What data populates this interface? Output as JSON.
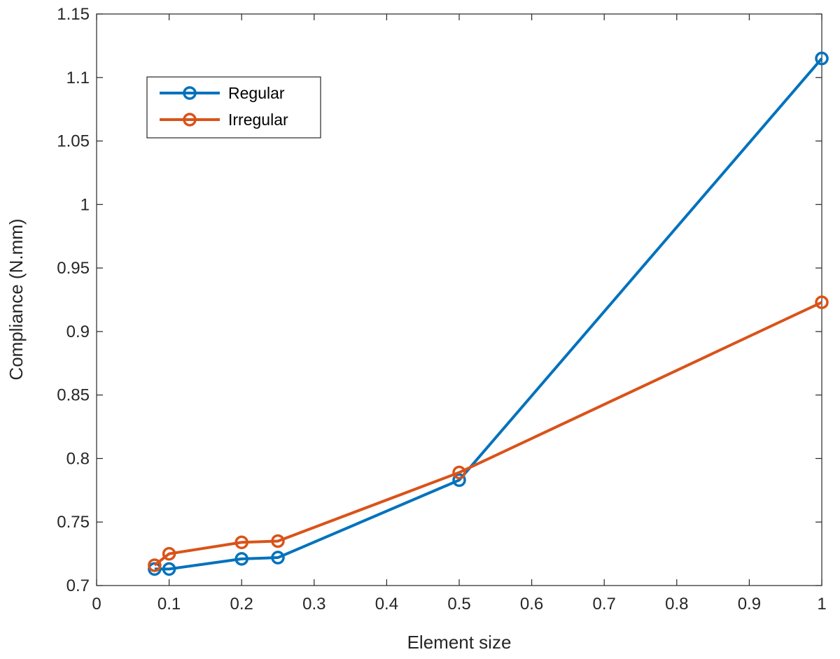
{
  "chart_data": {
    "type": "line",
    "title": "",
    "xlabel": "Element size",
    "ylabel": "Compliance (N.mm)",
    "xlim": [
      0,
      1
    ],
    "ylim": [
      0.7,
      1.15
    ],
    "xticks": [
      0,
      0.1,
      0.2,
      0.3,
      0.4,
      0.5,
      0.6,
      0.7,
      0.8,
      0.9,
      1
    ],
    "xtick_labels": [
      "0",
      "0.1",
      "0.2",
      "0.3",
      "0.4",
      "0.5",
      "0.6",
      "0.7",
      "0.8",
      "0.9",
      "1"
    ],
    "yticks": [
      0.7,
      0.75,
      0.8,
      0.85,
      0.9,
      0.95,
      1,
      1.05,
      1.1,
      1.15
    ],
    "ytick_labels": [
      "0.7",
      "0.75",
      "0.8",
      "0.85",
      "0.9",
      "0.95",
      "1",
      "1.05",
      "1.1",
      "1.15"
    ],
    "grid": false,
    "legend_position": "top-left",
    "series": [
      {
        "name": "Regular",
        "color": "#0072BD",
        "marker": "circle",
        "x": [
          0.08,
          0.1,
          0.2,
          0.25,
          0.5,
          1
        ],
        "y": [
          0.713,
          0.713,
          0.721,
          0.722,
          0.783,
          1.115
        ]
      },
      {
        "name": "Irregular",
        "color": "#D95319",
        "marker": "circle",
        "x": [
          0.08,
          0.1,
          0.2,
          0.25,
          0.5,
          1
        ],
        "y": [
          0.716,
          0.725,
          0.734,
          0.735,
          0.789,
          0.923
        ]
      }
    ]
  }
}
